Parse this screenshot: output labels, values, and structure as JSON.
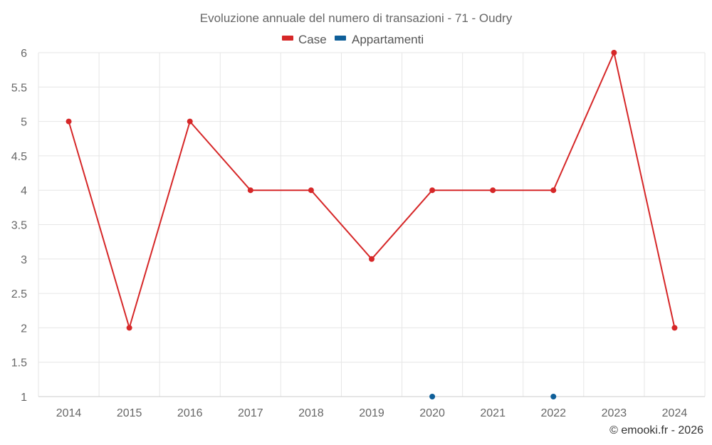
{
  "chart_data": {
    "type": "line",
    "title": "Evoluzione annuale del numero di transazioni - 71 - Oudry",
    "categories": [
      "2014",
      "2015",
      "2016",
      "2017",
      "2018",
      "2019",
      "2020",
      "2021",
      "2022",
      "2023",
      "2024"
    ],
    "series": [
      {
        "name": "Case",
        "color": "#d62728",
        "values": [
          5,
          2,
          5,
          4,
          4,
          3,
          4,
          4,
          4,
          6,
          2
        ]
      },
      {
        "name": "Appartamenti",
        "color": "#0f5f99",
        "values": [
          null,
          null,
          null,
          null,
          null,
          null,
          1,
          null,
          1,
          null,
          null
        ]
      }
    ],
    "ylim": [
      1,
      6
    ],
    "yticks": [
      "1",
      "1.5",
      "2",
      "2.5",
      "3",
      "3.5",
      "4",
      "4.5",
      "5",
      "5.5",
      "6"
    ],
    "xlabel": "",
    "ylabel": "",
    "legend_position": "top-center",
    "credit": "© emooki.fr - 2026"
  }
}
